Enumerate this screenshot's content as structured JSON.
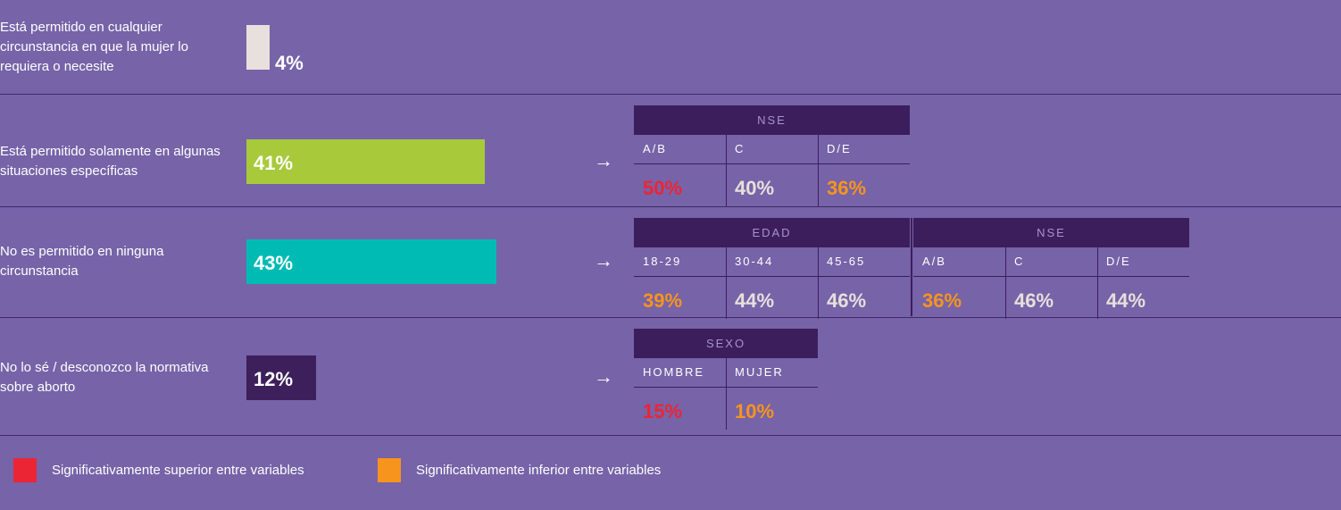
{
  "chart_data": {
    "type": "bar",
    "orientation": "horizontal",
    "categories": [
      "Está permitido en cualquier circunstancia en que la mujer lo requiera o necesite",
      "Está permitido solamente en algunas situaciones específicas",
      "No es permitido en ninguna circunstancia",
      "No lo sé / desconozco la normativa sobre aborto"
    ],
    "values": [
      4,
      41,
      43,
      12
    ],
    "value_labels": [
      "4%",
      "41%",
      "43%",
      "12%"
    ],
    "colors": [
      "#e8e0dc",
      "#a8c93a",
      "#00bbb4",
      "#3d1f5c"
    ],
    "arrow": "→",
    "breakdowns": [
      [],
      [
        {
          "title": "NSE",
          "columns": [
            "A/B",
            "C",
            "D/E"
          ],
          "values": [
            50,
            40,
            36
          ],
          "value_labels": [
            "50%",
            "40%",
            "36%"
          ],
          "colors": [
            "#ec2535",
            "#e6e0dc",
            "#f7941d"
          ]
        }
      ],
      [
        {
          "title": "EDAD",
          "columns": [
            "18-29",
            "30-44",
            "45-65"
          ],
          "values": [
            39,
            44,
            46
          ],
          "value_labels": [
            "39%",
            "44%",
            "46%"
          ],
          "colors": [
            "#f7941d",
            "#e6e0dc",
            "#e6e0dc"
          ]
        },
        {
          "title": "NSE",
          "columns": [
            "A/B",
            "C",
            "D/E"
          ],
          "values": [
            36,
            46,
            44
          ],
          "value_labels": [
            "36%",
            "46%",
            "44%"
          ],
          "colors": [
            "#f7941d",
            "#e6e0dc",
            "#e6e0dc"
          ]
        }
      ],
      [
        {
          "title": "SEXO",
          "columns": [
            "HOMBRE",
            "MUJER"
          ],
          "values": [
            15,
            10
          ],
          "value_labels": [
            "15%",
            "10%"
          ],
          "colors": [
            "#ec2535",
            "#f7941d"
          ]
        }
      ]
    ],
    "legend": [
      {
        "name": "Significativamente superior entre variables",
        "color": "#ec2535"
      },
      {
        "name": "Significativamente inferior entre variables",
        "color": "#f7941d"
      }
    ]
  }
}
